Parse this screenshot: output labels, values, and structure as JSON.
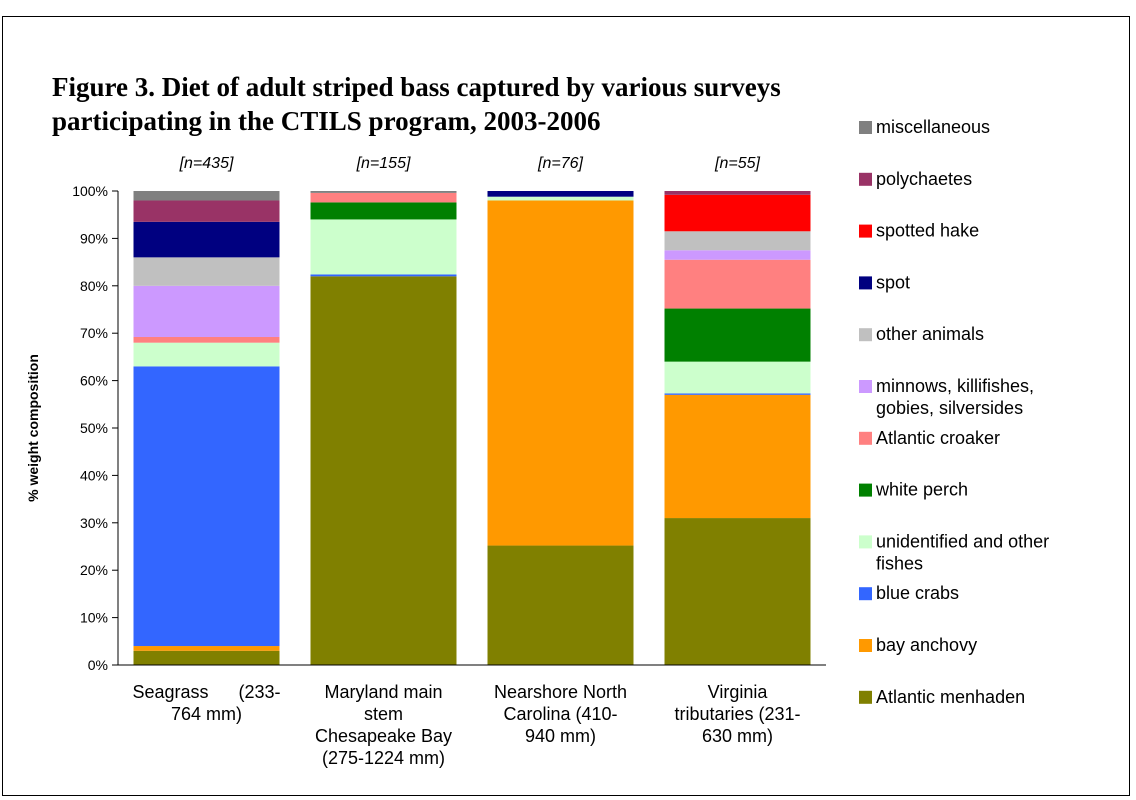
{
  "chart_data": {
    "type": "bar",
    "stacked": true,
    "title_line1": "Figure 3.  Diet of adult striped bass captured by various surveys",
    "title_line2": "participating in the CTILS program, 2003-2006",
    "ylabel": "% weight composition",
    "ylim": [
      0,
      100
    ],
    "yticks": [
      "0%",
      "10%",
      "20%",
      "30%",
      "40%",
      "50%",
      "60%",
      "70%",
      "80%",
      "90%",
      "100%"
    ],
    "categories": [
      [
        "Seagrass      (233-",
        "764 mm)"
      ],
      [
        "Maryland main",
        "stem",
        "Chesapeake Bay",
        "(275-1224 mm)"
      ],
      [
        "Nearshore North",
        "Carolina (410-",
        "940 mm)"
      ],
      [
        "Virginia",
        "tributaries (231-",
        "630 mm)"
      ]
    ],
    "sample_sizes": [
      "[n=435]",
      "[n=155]",
      "[n=76]",
      "[n=55]"
    ],
    "legend_position": "right",
    "series": [
      {
        "name": "Atlantic menhaden",
        "color": "#808000",
        "values": [
          3.0,
          82.0,
          25.2,
          31.0
        ]
      },
      {
        "name": "bay anchovy",
        "color": "#FF9900",
        "values": [
          1.0,
          0.0,
          72.8,
          26.0
        ]
      },
      {
        "name": "blue crabs",
        "color": "#3366FF",
        "values": [
          59.0,
          0.4,
          0.0,
          0.3
        ]
      },
      {
        "name": "unidentified and other fishes",
        "color": "#CCFFCC",
        "values": [
          5.0,
          11.6,
          0.8,
          6.7
        ]
      },
      {
        "name": "white perch",
        "color": "#008000",
        "values": [
          0.0,
          3.6,
          0.0,
          11.2
        ]
      },
      {
        "name": "Atlantic croaker",
        "color": "#FF8080",
        "values": [
          1.2,
          2.0,
          0.0,
          10.3
        ]
      },
      {
        "name": "minnows, killifishes, gobies, silversides",
        "color": "#CC99FF",
        "values": [
          10.8,
          0.0,
          0.0,
          2.0
        ]
      },
      {
        "name": "other animals",
        "color": "#C0C0C0",
        "values": [
          6.0,
          0.0,
          0.0,
          4.0
        ]
      },
      {
        "name": "spot",
        "color": "#000080",
        "values": [
          7.5,
          0.0,
          1.2,
          0.0
        ]
      },
      {
        "name": "spotted hake",
        "color": "#FF0000",
        "values": [
          0.0,
          0.0,
          0.0,
          7.7
        ]
      },
      {
        "name": "polychaetes",
        "color": "#993366",
        "values": [
          4.5,
          0.0,
          0.0,
          0.8
        ]
      },
      {
        "name": "miscellaneous",
        "color": "#808080",
        "values": [
          2.0,
          0.4,
          0.0,
          0.0
        ]
      }
    ],
    "legend": [
      {
        "label_lines": [
          "miscellaneous"
        ],
        "color": "#808080"
      },
      {
        "label_lines": [
          "polychaetes"
        ],
        "color": "#993366"
      },
      {
        "label_lines": [
          "spotted hake"
        ],
        "color": "#FF0000"
      },
      {
        "label_lines": [
          "spot"
        ],
        "color": "#000080"
      },
      {
        "label_lines": [
          "other animals"
        ],
        "color": "#C0C0C0"
      },
      {
        "label_lines": [
          "minnows, killifishes,",
          "gobies, silversides"
        ],
        "color": "#CC99FF"
      },
      {
        "label_lines": [
          "Atlantic croaker"
        ],
        "color": "#FF8080"
      },
      {
        "label_lines": [
          "white perch"
        ],
        "color": "#008000"
      },
      {
        "label_lines": [
          "unidentified and other",
          "fishes"
        ],
        "color": "#CCFFCC"
      },
      {
        "label_lines": [
          "blue crabs"
        ],
        "color": "#3366FF"
      },
      {
        "label_lines": [
          "bay anchovy"
        ],
        "color": "#FF9900"
      },
      {
        "label_lines": [
          "Atlantic menhaden"
        ],
        "color": "#808000"
      }
    ]
  }
}
